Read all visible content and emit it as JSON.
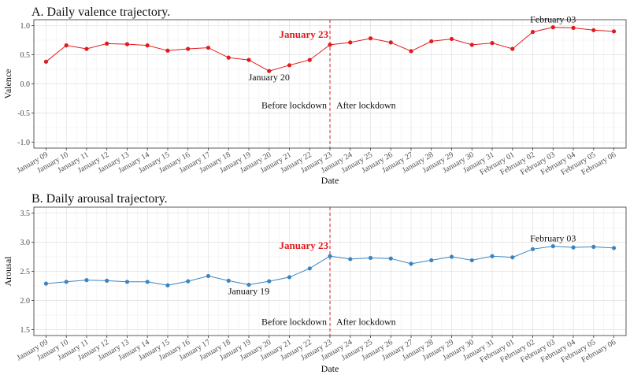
{
  "chart_data": [
    {
      "type": "line",
      "title": "A. Daily valence trajectory.",
      "xlabel": "Date",
      "ylabel": "Valence",
      "ylim": [
        -1.1,
        1.1
      ],
      "yticks": [
        -1.0,
        -0.5,
        0.0,
        0.5,
        1.0
      ],
      "ytick_labels": [
        "-1.0",
        "-0.5",
        "0.0",
        "0.5",
        "1.0"
      ],
      "grid": true,
      "categories": [
        "January 09",
        "January 10",
        "January 11",
        "January 12",
        "January 13",
        "January 14",
        "January 15",
        "January 16",
        "January 17",
        "January 18",
        "January 19",
        "January 20",
        "January 21",
        "January 22",
        "January 23",
        "January 24",
        "January 25",
        "January 26",
        "January 27",
        "January 28",
        "January 29",
        "January 30",
        "January 31",
        "February 01",
        "February 02",
        "February 03",
        "February 04",
        "February 05",
        "February 06"
      ],
      "series": [
        {
          "name": "Valence",
          "color": "#e31a1c",
          "values": [
            0.38,
            0.66,
            0.6,
            0.69,
            0.68,
            0.66,
            0.57,
            0.6,
            0.62,
            0.45,
            0.41,
            0.22,
            0.32,
            0.41,
            0.67,
            0.71,
            0.78,
            0.71,
            0.56,
            0.73,
            0.77,
            0.67,
            0.7,
            0.6,
            0.89,
            0.97,
            0.96,
            0.92,
            0.9
          ]
        }
      ],
      "vline": {
        "category": "January 23",
        "label": "January 23",
        "color": "#e31a1c"
      },
      "annotations": [
        {
          "text": "January 20",
          "category": "January 20",
          "value": 0.22,
          "placement": "below"
        },
        {
          "text": "February 03",
          "category": "February 03",
          "value": 0.97,
          "placement": "above"
        }
      ],
      "region_labels": {
        "before": "Before lockdown",
        "after": "After lockdown",
        "value": -0.42
      }
    },
    {
      "type": "line",
      "title": "B. Daily arousal trajectory.",
      "xlabel": "Date",
      "ylabel": "Arousal",
      "ylim": [
        1.4,
        3.6
      ],
      "yticks": [
        1.5,
        2.0,
        2.5,
        3.0,
        3.5
      ],
      "ytick_labels": [
        "1.5",
        "2.0",
        "2.5",
        "3.0",
        "3.5"
      ],
      "grid": true,
      "categories": [
        "January 09",
        "January 10",
        "January 11",
        "January 12",
        "January 13",
        "January 14",
        "January 15",
        "January 16",
        "January 17",
        "January 18",
        "January 19",
        "January 20",
        "January 21",
        "January 22",
        "January 23",
        "January 24",
        "January 25",
        "January 26",
        "January 27",
        "January 28",
        "January 29",
        "January 30",
        "January 31",
        "February 01",
        "February 02",
        "February 03",
        "February 04",
        "February 05",
        "February 06"
      ],
      "series": [
        {
          "name": "Arousal",
          "color": "#3a85c1",
          "values": [
            2.29,
            2.32,
            2.35,
            2.34,
            2.32,
            2.32,
            2.26,
            2.33,
            2.42,
            2.34,
            2.27,
            2.33,
            2.4,
            2.55,
            2.76,
            2.71,
            2.73,
            2.72,
            2.63,
            2.69,
            2.75,
            2.69,
            2.76,
            2.74,
            2.88,
            2.93,
            2.91,
            2.92,
            2.9
          ]
        }
      ],
      "vline": {
        "category": "January 23",
        "label": "January 23",
        "color": "#e31a1c"
      },
      "annotations": [
        {
          "text": "January 19",
          "category": "January 19",
          "value": 2.27,
          "placement": "below"
        },
        {
          "text": "February 03",
          "category": "February 03",
          "value": 2.93,
          "placement": "above"
        }
      ],
      "region_labels": {
        "before": "Before lockdown",
        "after": "After lockdown",
        "value": 1.58
      }
    }
  ]
}
